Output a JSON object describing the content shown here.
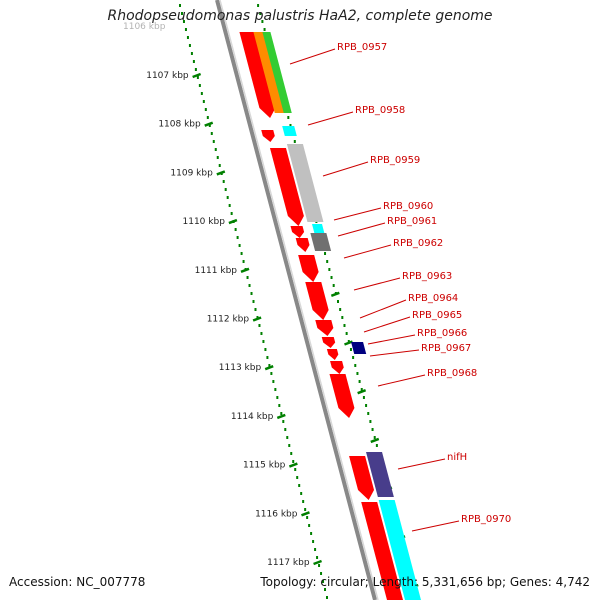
{
  "title": "Rhodopseudomonas palustris HaA2, complete genome",
  "footer": {
    "accession": "Accession: NC_007778",
    "summary": "Topology: circular; Length: 5,331,656 bp; Genes: 4,742"
  },
  "top_partial_label": "1106 kbp",
  "kbp_ticks": [
    "1107 kbp",
    "1108 kbp",
    "1109 kbp",
    "1110 kbp",
    "1111 kbp",
    "1112 kbp",
    "1113 kbp",
    "1114 kbp",
    "1115 kbp",
    "1116 kbp",
    "1117 kbp"
  ],
  "genes": [
    {
      "label": "RPB_0957"
    },
    {
      "label": "RPB_0958"
    },
    {
      "label": "RPB_0959"
    },
    {
      "label": "RPB_0960"
    },
    {
      "label": "RPB_0961"
    },
    {
      "label": "RPB_0962"
    },
    {
      "label": "RPB_0963"
    },
    {
      "label": "RPB_0964"
    },
    {
      "label": "RPB_0965"
    },
    {
      "label": "RPB_0966"
    },
    {
      "label": "RPB_0967"
    },
    {
      "label": "RPB_0968"
    },
    {
      "label": "nifH"
    },
    {
      "label": "RPB_0970"
    }
  ],
  "colors": {
    "cds": "#ff0000",
    "backbone": "#888888",
    "ticks": "#008000",
    "label_line": "#cc0000",
    "orange": "#ff8c00",
    "green": "#33cc33",
    "cyan": "#00ffff",
    "lightgray": "#c0c0c0",
    "darkgray": "#707070",
    "navy": "#000080",
    "purple": "#483d8b"
  }
}
